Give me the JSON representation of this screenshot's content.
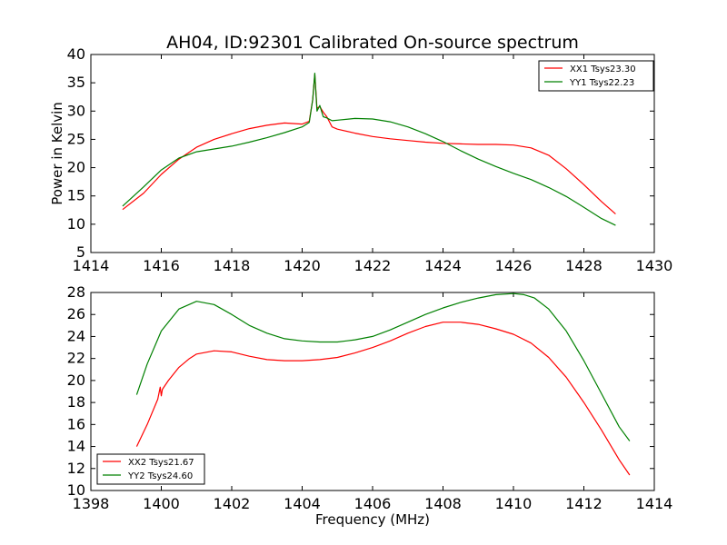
{
  "figure": {
    "title": "AH04, ID:92301 Calibrated On-source spectrum",
    "ylabel": "Power in Kelvin",
    "xlabel": "Frequency (MHz)"
  },
  "chart_data": [
    {
      "type": "line",
      "title": "AH04, ID:92301 Calibrated On-source spectrum",
      "xlabel": "",
      "ylabel": "Power in Kelvin",
      "xlim": [
        1414,
        1430
      ],
      "ylim": [
        5,
        40
      ],
      "xticks": [
        1414,
        1416,
        1418,
        1420,
        1422,
        1424,
        1426,
        1428,
        1430
      ],
      "yticks": [
        5,
        10,
        15,
        20,
        25,
        30,
        35,
        40
      ],
      "legend_position": "top-right",
      "series": [
        {
          "name": "XX1 Tsys23.30",
          "color": "#ff0000",
          "x": [
            1414.9,
            1415.5,
            1416.0,
            1416.5,
            1417.0,
            1417.5,
            1418.0,
            1418.5,
            1419.0,
            1419.5,
            1420.0,
            1420.2,
            1420.3,
            1420.36,
            1420.42,
            1420.5,
            1420.6,
            1420.7,
            1420.85,
            1421.0,
            1421.5,
            1422.0,
            1422.5,
            1423.0,
            1423.5,
            1424.0,
            1424.5,
            1425.0,
            1425.5,
            1426.0,
            1426.5,
            1427.0,
            1427.5,
            1428.0,
            1428.5,
            1428.9
          ],
          "y": [
            12.6,
            15.5,
            18.8,
            21.5,
            23.6,
            25.0,
            26.0,
            26.9,
            27.5,
            27.9,
            27.7,
            28.2,
            32.0,
            36.5,
            30.5,
            30.8,
            29.8,
            29.0,
            27.2,
            26.8,
            26.1,
            25.5,
            25.1,
            24.8,
            24.5,
            24.3,
            24.2,
            24.1,
            24.1,
            24.0,
            23.5,
            22.2,
            19.8,
            17.0,
            14.0,
            11.8
          ]
        },
        {
          "name": "YY1 Tsys22.23",
          "color": "#008000",
          "x": [
            1414.9,
            1415.5,
            1416.0,
            1416.5,
            1417.0,
            1417.5,
            1418.0,
            1418.5,
            1419.0,
            1419.5,
            1420.0,
            1420.2,
            1420.3,
            1420.36,
            1420.42,
            1420.5,
            1420.6,
            1420.7,
            1420.85,
            1421.0,
            1421.5,
            1422.0,
            1422.5,
            1423.0,
            1423.5,
            1424.0,
            1424.5,
            1425.0,
            1425.5,
            1426.0,
            1426.5,
            1427.0,
            1427.5,
            1428.0,
            1428.5,
            1428.9
          ],
          "y": [
            13.2,
            16.6,
            19.6,
            21.7,
            22.8,
            23.3,
            23.8,
            24.5,
            25.3,
            26.2,
            27.2,
            28.0,
            32.0,
            36.7,
            30.0,
            31.0,
            29.0,
            28.8,
            28.3,
            28.4,
            28.7,
            28.6,
            28.1,
            27.2,
            26.0,
            24.6,
            23.0,
            21.5,
            20.2,
            19.0,
            17.9,
            16.5,
            14.9,
            13.0,
            11.0,
            9.8
          ]
        }
      ]
    },
    {
      "type": "line",
      "title": "",
      "xlabel": "Frequency (MHz)",
      "ylabel": "",
      "xlim": [
        1398,
        1414
      ],
      "ylim": [
        10,
        28
      ],
      "xticks": [
        1398,
        1400,
        1402,
        1404,
        1406,
        1408,
        1410,
        1412,
        1414
      ],
      "yticks": [
        10,
        12,
        14,
        16,
        18,
        20,
        22,
        24,
        26,
        28
      ],
      "legend_position": "bottom-left",
      "series": [
        {
          "name": "XX2 Tsys21.67",
          "color": "#ff0000",
          "x": [
            1399.3,
            1399.6,
            1399.9,
            1399.97,
            1400.0,
            1400.03,
            1400.2,
            1400.5,
            1400.8,
            1401.0,
            1401.5,
            1402.0,
            1402.5,
            1403.0,
            1403.5,
            1404.0,
            1404.5,
            1405.0,
            1405.5,
            1406.0,
            1406.5,
            1407.0,
            1407.5,
            1408.0,
            1408.5,
            1409.0,
            1409.5,
            1410.0,
            1410.5,
            1411.0,
            1411.5,
            1412.0,
            1412.5,
            1413.0,
            1413.3
          ],
          "y": [
            14.0,
            16.0,
            18.3,
            19.4,
            18.6,
            19.2,
            20.0,
            21.2,
            22.0,
            22.4,
            22.7,
            22.6,
            22.2,
            21.9,
            21.8,
            21.8,
            21.9,
            22.1,
            22.5,
            23.0,
            23.6,
            24.3,
            24.9,
            25.3,
            25.3,
            25.1,
            24.7,
            24.2,
            23.4,
            22.1,
            20.3,
            18.0,
            15.5,
            12.8,
            11.4
          ]
        },
        {
          "name": "YY2 Tsys24.60",
          "color": "#008000",
          "x": [
            1399.3,
            1399.6,
            1400.0,
            1400.5,
            1401.0,
            1401.5,
            1402.0,
            1402.5,
            1403.0,
            1403.5,
            1404.0,
            1404.5,
            1405.0,
            1405.5,
            1406.0,
            1406.5,
            1407.0,
            1407.5,
            1408.0,
            1408.5,
            1409.0,
            1409.5,
            1410.0,
            1410.3,
            1410.6,
            1411.0,
            1411.5,
            1412.0,
            1412.5,
            1413.0,
            1413.3
          ],
          "y": [
            18.7,
            21.5,
            24.5,
            26.5,
            27.2,
            26.9,
            26.0,
            25.0,
            24.3,
            23.8,
            23.6,
            23.5,
            23.5,
            23.7,
            24.0,
            24.6,
            25.3,
            26.0,
            26.6,
            27.1,
            27.5,
            27.8,
            27.9,
            27.8,
            27.5,
            26.5,
            24.5,
            21.8,
            18.8,
            15.8,
            14.5
          ]
        }
      ]
    }
  ]
}
